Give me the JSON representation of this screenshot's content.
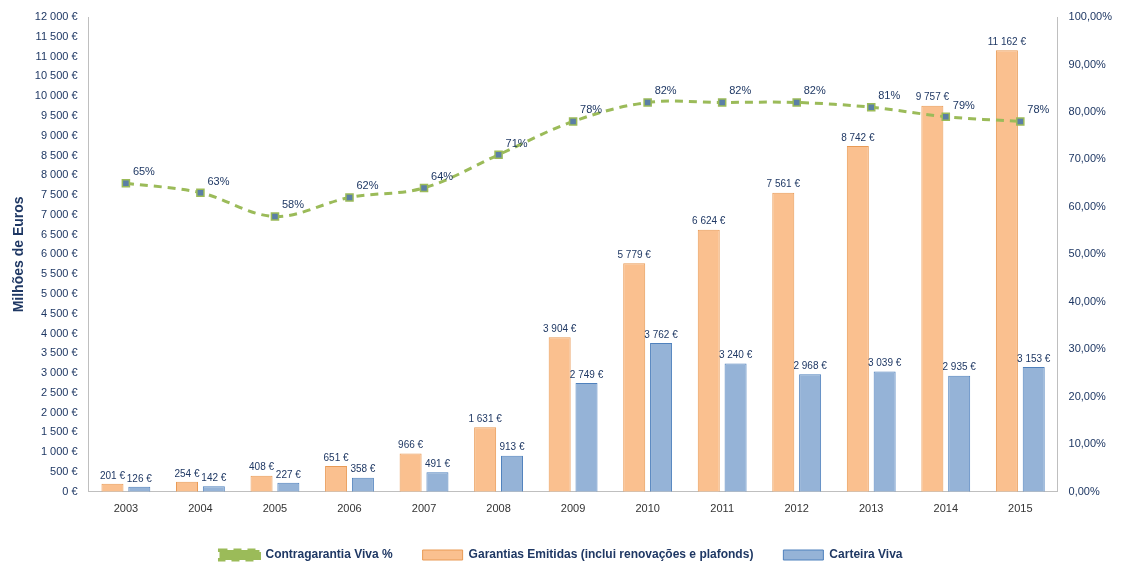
{
  "chart_data": {
    "type": "bar",
    "y_label": "Milhões de Euros",
    "categories": [
      "2003",
      "2004",
      "2005",
      "2006",
      "2007",
      "2008",
      "2009",
      "2010",
      "2011",
      "2012",
      "2013",
      "2014",
      "2015"
    ],
    "series": [
      {
        "name": "Garantias Emitidas (inclui renovações e plafonds)",
        "type": "bar",
        "color": "#FAC08F",
        "values": [
          201,
          254,
          408,
          651,
          966,
          1631,
          3904,
          5779,
          6624,
          7561,
          8742,
          9757,
          11162
        ],
        "value_labels": [
          "201 €",
          "254 €",
          "408 €",
          "651 €",
          "966 €",
          "1 631 €",
          "3 904 €",
          "5 779 €",
          "6 624 €",
          "7 561 €",
          "8 742 €",
          "9 757 €",
          "11 162 €"
        ]
      },
      {
        "name": "Carteira Viva",
        "type": "bar",
        "color": "#95B3D7",
        "values": [
          126,
          142,
          227,
          358,
          491,
          913,
          2749,
          3762,
          3240,
          2968,
          3039,
          2935,
          3153
        ],
        "value_labels": [
          "126 €",
          "142 €",
          "227 €",
          "358 €",
          "491 €",
          "913 €",
          "2 749 €",
          "3 762 €",
          "3 240 €",
          "2 968 €",
          "3 039 €",
          "2 935 €",
          "3 153 €"
        ]
      },
      {
        "name": "Contragarantia Viva %",
        "type": "line",
        "axis": "y2",
        "color": "#9BBB59",
        "marker": "square",
        "line_style": "dashed",
        "values": [
          65,
          63,
          58,
          62,
          64,
          71,
          78,
          82,
          82,
          82,
          81,
          79,
          78
        ],
        "value_labels": [
          "65%",
          "63%",
          "58%",
          "62%",
          "64%",
          "71%",
          "78%",
          "82%",
          "82%",
          "82%",
          "81%",
          "79%",
          "78%"
        ]
      }
    ],
    "ylim": [
      0,
      12000
    ],
    "yticks": [
      {
        "value": 0,
        "label": "0 €"
      },
      {
        "value": 500,
        "label": "500 €"
      },
      {
        "value": 1000,
        "label": "1 000 €"
      },
      {
        "value": 1500,
        "label": "1 500 €"
      },
      {
        "value": 2000,
        "label": "2 000 €"
      },
      {
        "value": 2500,
        "label": "2 500 €"
      },
      {
        "value": 3000,
        "label": "3 000 €"
      },
      {
        "value": 3500,
        "label": "3 500 €"
      },
      {
        "value": 4000,
        "label": "4 000 €"
      },
      {
        "value": 4500,
        "label": "4 500 €"
      },
      {
        "value": 5000,
        "label": "5 000 €"
      },
      {
        "value": 5500,
        "label": "5 500 €"
      },
      {
        "value": 6000,
        "label": "6 000 €"
      },
      {
        "value": 6500,
        "label": "6 500 €"
      },
      {
        "value": 7000,
        "label": "7 000 €"
      },
      {
        "value": 7500,
        "label": "7 500 €"
      },
      {
        "value": 8000,
        "label": "8 000 €"
      },
      {
        "value": 8500,
        "label": "8 500 €"
      },
      {
        "value": 9000,
        "label": "9 000 €"
      },
      {
        "value": 9500,
        "label": "9 500 €"
      },
      {
        "value": 10000,
        "label": "10 000 €"
      },
      {
        "value": 10500,
        "label": "10 500 €"
      },
      {
        "value": 11000,
        "label": "11 000 €"
      },
      {
        "value": 11500,
        "label": "11 500 €"
      },
      {
        "value": 12000,
        "label": "12 000 €"
      }
    ],
    "y2lim": [
      0,
      100
    ],
    "y2ticks": [
      {
        "value": 0,
        "label": "0,00%"
      },
      {
        "value": 10,
        "label": "10,00%"
      },
      {
        "value": 20,
        "label": "20,00%"
      },
      {
        "value": 30,
        "label": "30,00%"
      },
      {
        "value": 40,
        "label": "40,00%"
      },
      {
        "value": 50,
        "label": "50,00%"
      },
      {
        "value": 60,
        "label": "60,00%"
      },
      {
        "value": 70,
        "label": "70,00%"
      },
      {
        "value": 80,
        "label": "80,00%"
      },
      {
        "value": 90,
        "label": "90,00%"
      },
      {
        "value": 100,
        "label": "100,00%"
      }
    ],
    "grid": false,
    "legend": "bottom",
    "data_labels": true
  }
}
